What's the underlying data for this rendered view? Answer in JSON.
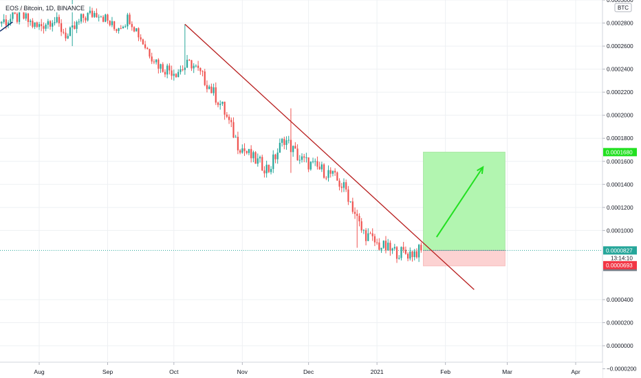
{
  "header": {
    "symbol_text": "EOS / Bitcoin, 1D, BINANCE"
  },
  "price_axis": {
    "currency_label": "BTC",
    "ticks": [
      {
        "value": 0.0003,
        "label": "0.0003000"
      },
      {
        "value": 0.00028,
        "label": "0.0002800"
      },
      {
        "value": 0.00026,
        "label": "0.0002600"
      },
      {
        "value": 0.00024,
        "label": "0.0002400"
      },
      {
        "value": 0.00022,
        "label": "0.0002200"
      },
      {
        "value": 0.0002,
        "label": "0.0002000"
      },
      {
        "value": 0.00018,
        "label": "0.0001800"
      },
      {
        "value": 0.00016,
        "label": "0.0001600"
      },
      {
        "value": 0.00014,
        "label": "0.0001400"
      },
      {
        "value": 0.00012,
        "label": "0.0001200"
      },
      {
        "value": 0.0001,
        "label": "0.0001000"
      },
      {
        "value": 4e-05,
        "label": "0.0000400"
      },
      {
        "value": 2e-05,
        "label": "0.0000200"
      },
      {
        "value": 0.0,
        "label": "0.0000000"
      },
      {
        "value": -2e-05,
        "label": "−0.0000200"
      }
    ],
    "badges": [
      {
        "key": "target",
        "value": 0.000168,
        "label": "0.0001680",
        "bg": "#22e021",
        "fg": "#ffffff"
      },
      {
        "key": "last",
        "value": 8.27e-05,
        "label": "0.0000827",
        "bg": "#26a69a",
        "fg": "#ffffff",
        "sub": "13:14:10"
      },
      {
        "key": "entry",
        "value": 8.27e-05,
        "label": "0.0000827",
        "bg": "#787b86",
        "fg": "#ffffff"
      },
      {
        "key": "stop",
        "value": 6.93e-05,
        "label": "0.0000693",
        "bg": "#f23645",
        "fg": "#ffffff"
      }
    ]
  },
  "time_axis": {
    "labels": [
      {
        "date": "2020-08-01",
        "label": "Aug"
      },
      {
        "date": "2020-09-01",
        "label": "Sep"
      },
      {
        "date": "2020-10-01",
        "label": "Oct"
      },
      {
        "date": "2020-11-01",
        "label": "Nov"
      },
      {
        "date": "2020-12-01",
        "label": "Dec"
      },
      {
        "date": "2021-01-01",
        "label": "2021"
      },
      {
        "date": "2021-02-01",
        "label": "Feb"
      },
      {
        "date": "2021-03-01",
        "label": "Mar"
      },
      {
        "date": "2021-04-01",
        "label": "Apr"
      }
    ]
  },
  "colors": {
    "up": "#26a69a",
    "down": "#ef5350",
    "trendline": "#b71c1c",
    "arrow_up": "#22e021",
    "profit_zone": "#b2f5b0",
    "loss_zone": "#fcd2d2",
    "grid": "#eef0f3",
    "axis_text": "#131722",
    "last_price_line": "#26a69a"
  },
  "chart_data": {
    "type": "candlestick",
    "symbol": "EOS / Bitcoin",
    "interval": "1D",
    "exchange": "BINANCE",
    "y_unit": "BTC",
    "ylim": [
      -2.8e-05,
      0.0003
    ],
    "xlim": [
      "2020-07-10",
      "2021-04-10"
    ],
    "grid": true,
    "closes_weekly": [
      {
        "date": "2020-07-10",
        "close": 0.00028
      },
      {
        "date": "2020-07-17",
        "close": 0.000282
      },
      {
        "date": "2020-07-24",
        "close": 0.000286
      },
      {
        "date": "2020-07-31",
        "close": 0.000276
      },
      {
        "date": "2020-08-07",
        "close": 0.000284
      },
      {
        "date": "2020-08-14",
        "close": 0.000268
      },
      {
        "date": "2020-08-21",
        "close": 0.000285
      },
      {
        "date": "2020-08-28",
        "close": 0.00029
      },
      {
        "date": "2020-09-04",
        "close": 0.000275
      },
      {
        "date": "2020-09-11",
        "close": 0.000285
      },
      {
        "date": "2020-09-18",
        "close": 0.00026
      },
      {
        "date": "2020-09-25",
        "close": 0.000242
      },
      {
        "date": "2020-10-02",
        "close": 0.000238
      },
      {
        "date": "2020-10-09",
        "close": 0.000245
      },
      {
        "date": "2020-10-16",
        "close": 0.000228
      },
      {
        "date": "2020-10-23",
        "close": 0.000207
      },
      {
        "date": "2020-10-30",
        "close": 0.000175
      },
      {
        "date": "2020-11-06",
        "close": 0.000162
      },
      {
        "date": "2020-11-13",
        "close": 0.000153
      },
      {
        "date": "2020-11-20",
        "close": 0.00018
      },
      {
        "date": "2020-11-27",
        "close": 0.000162
      },
      {
        "date": "2020-12-04",
        "close": 0.000155
      },
      {
        "date": "2020-12-11",
        "close": 0.000149
      },
      {
        "date": "2020-12-18",
        "close": 0.000135
      },
      {
        "date": "2020-12-25",
        "close": 0.0001
      },
      {
        "date": "2021-01-01",
        "close": 8.8e-05
      },
      {
        "date": "2021-01-08",
        "close": 8.2e-05
      },
      {
        "date": "2021-01-15",
        "close": 8e-05
      },
      {
        "date": "2021-01-21",
        "close": 8.27e-05
      }
    ],
    "wick_extremes": [
      {
        "date": "2020-08-16",
        "high": 0.000305,
        "low": 0.00026
      },
      {
        "date": "2020-10-06",
        "high": 0.000279,
        "low": 0.000238
      },
      {
        "date": "2020-11-23",
        "high": 0.000206,
        "low": 0.00015
      },
      {
        "date": "2020-12-23",
        "high": 0.000113,
        "low": 8.5e-05
      }
    ],
    "drawings": {
      "trendline": [
        {
          "date": "2020-10-06",
          "value": 0.000279
        },
        {
          "date": "2021-02-14",
          "value": 4.87e-05
        }
      ],
      "aug_trend_segment": [
        {
          "date": "2020-07-10",
          "value": 0.000274
        },
        {
          "date": "2020-07-20",
          "value": 0.000281
        }
      ],
      "long_position": {
        "start": "2021-01-22",
        "end": "2021-02-28",
        "entry": 8.27e-05,
        "target": 0.000168,
        "stop": 6.93e-05
      },
      "arrow": [
        {
          "date": "2021-01-28",
          "value": 9.43e-05
        },
        {
          "date": "2021-02-18",
          "value": 0.000155
        }
      ]
    }
  }
}
